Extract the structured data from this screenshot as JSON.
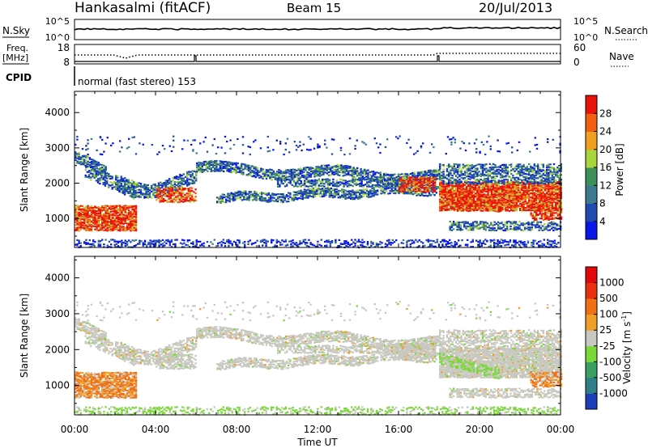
{
  "header": {
    "station": "Hankasalmi (fitACF)",
    "beam": "Beam 15",
    "date": "20/Jul/2013"
  },
  "noise_panel": {
    "left_label": "N.Sky",
    "right_label": "N.Search",
    "left_ticks": [
      "10^5",
      "10^0"
    ],
    "right_ticks": [
      "10^5",
      "10^0"
    ]
  },
  "freq_panel": {
    "left_label_lines": [
      "Freq.",
      "[MHz]"
    ],
    "right_label": "Nave",
    "left_ticks": [
      "18",
      "8"
    ],
    "right_ticks": [
      "60",
      "0"
    ]
  },
  "cpid": {
    "label": "CPID",
    "mode": "normal (fast stereo) 153"
  },
  "time_axis": {
    "label": "Time UT",
    "ticks": [
      "00:00",
      "04:00",
      "08:00",
      "12:00",
      "16:00",
      "20:00",
      "00:00"
    ]
  },
  "chart_data": [
    {
      "type": "heatmap",
      "panel": "power",
      "ylabel": "Slant Range [km]",
      "x_range_hours": [
        0,
        24
      ],
      "ylim": [
        180,
        4600
      ],
      "yticks": [
        1000,
        2000,
        3000,
        4000
      ],
      "colorbar": {
        "label": "Power [dB]",
        "ticks": [
          "4",
          "8",
          "12",
          "16",
          "20",
          "24",
          "28"
        ],
        "colors": [
          "#0a16e8",
          "#1f4bb0",
          "#3b7a8e",
          "#3f8f58",
          "#a8d43c",
          "#f0a020",
          "#f06010",
          "#e8140c"
        ]
      },
      "features": [
        {
          "description": "echo band",
          "start_hr": 0.0,
          "end_hr": 6.0,
          "range_km": [
            700,
            1600
          ],
          "level": "high"
        },
        {
          "description": "echo band",
          "start_hr": 0.0,
          "end_hr": 24.0,
          "range_km": [
            1500,
            3000
          ],
          "level": "medium"
        },
        {
          "description": "echo band",
          "start_hr": 18.0,
          "end_hr": 24.0,
          "range_km": [
            1100,
            2100
          ],
          "level": "high"
        },
        {
          "description": "echo band",
          "start_hr": 18.0,
          "end_hr": 24.0,
          "range_km": [
            700,
            1000
          ],
          "level": "low"
        }
      ]
    },
    {
      "type": "heatmap",
      "panel": "velocity",
      "ylabel": "Slant Range [km]",
      "x_range_hours": [
        0,
        24
      ],
      "ylim": [
        180,
        4600
      ],
      "yticks": [
        1000,
        2000,
        3000,
        4000
      ],
      "colorbar": {
        "label": "Velocity [m s-1]",
        "ticks": [
          "1000",
          "500",
          "100",
          "25",
          "-25",
          "-100",
          "-500",
          "-1000"
        ],
        "colors": [
          "#1b3fb8",
          "#2f7f88",
          "#3aa062",
          "#7ad83a",
          "#c8c8c0",
          "#f0a028",
          "#f07018",
          "#e83010",
          "#e00808"
        ]
      }
    }
  ]
}
